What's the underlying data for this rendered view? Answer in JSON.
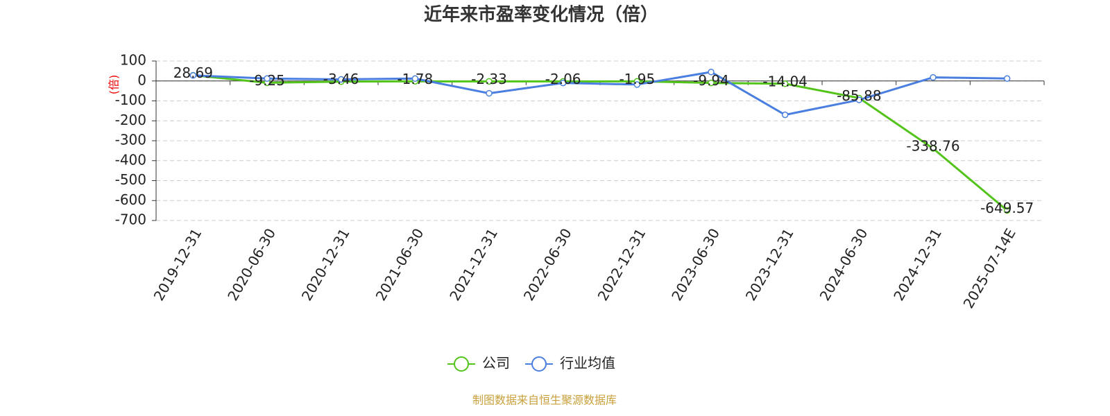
{
  "chart_data": {
    "type": "line",
    "title": "近年来市盈率变化情况（倍）",
    "y_label": "(倍)",
    "source": "制图数据来自恒生聚源数据库",
    "categories": [
      "2019-12-31",
      "2020-06-30",
      "2020-12-31",
      "2021-06-30",
      "2021-12-31",
      "2022-06-30",
      "2022-12-31",
      "2023-06-30",
      "2023-12-31",
      "2024-06-30",
      "2024-12-31",
      "2025-07-14E"
    ],
    "series": [
      {
        "name": "公司",
        "color": "#52c41a",
        "data_labels": true,
        "values": [
          28.69,
          -9.25,
          -3.46,
          -1.78,
          -2.33,
          -2.06,
          -1.95,
          -9.94,
          -14.04,
          -85.88,
          -338.76,
          -649.57
        ]
      },
      {
        "name": "行业均值",
        "color": "#4a7fe0",
        "data_labels": false,
        "values": [
          28,
          12,
          8,
          12,
          -62,
          -10,
          -18,
          45,
          -170,
          -95,
          18,
          12
        ]
      }
    ],
    "ylim": [
      -700,
      100
    ],
    "yticks": [
      100,
      0,
      -100,
      -200,
      -300,
      -400,
      -500,
      -600,
      -700
    ],
    "grid": true,
    "legend": "bottom"
  }
}
